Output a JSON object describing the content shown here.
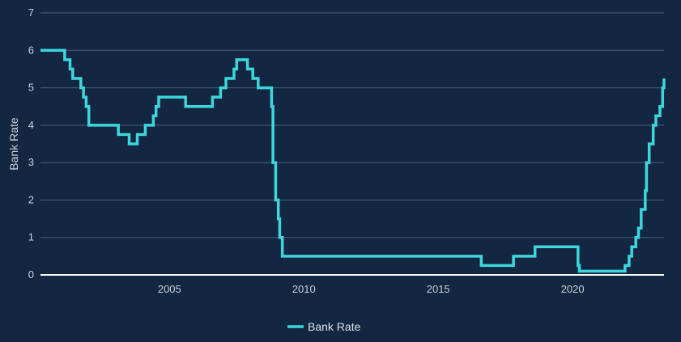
{
  "colors": {
    "background": "#132742",
    "grid": "#4b5f78",
    "axis": "#ffffff",
    "series": "#3dd6dc",
    "text": "#c9d1dc"
  },
  "chart_data": {
    "type": "line",
    "title": "",
    "xlabel": "",
    "ylabel": "Bank Rate",
    "xlim": [
      2000.2,
      2023.4
    ],
    "ylim": [
      0,
      7
    ],
    "x_ticks": [
      "2005",
      "2010",
      "2015",
      "2020"
    ],
    "y_ticks": [
      "0",
      "1",
      "2",
      "3",
      "4",
      "5",
      "6",
      "7"
    ],
    "grid": true,
    "legend_position": "bottom-center",
    "step": "after",
    "series": [
      {
        "name": "Bank Rate",
        "points": [
          [
            2000.2,
            6.0
          ],
          [
            2001.1,
            5.75
          ],
          [
            2001.3,
            5.5
          ],
          [
            2001.4,
            5.25
          ],
          [
            2001.7,
            5.0
          ],
          [
            2001.8,
            4.75
          ],
          [
            2001.9,
            4.5
          ],
          [
            2002.0,
            4.0
          ],
          [
            2003.1,
            3.75
          ],
          [
            2003.5,
            3.5
          ],
          [
            2003.8,
            3.75
          ],
          [
            2004.1,
            4.0
          ],
          [
            2004.4,
            4.25
          ],
          [
            2004.5,
            4.5
          ],
          [
            2004.6,
            4.75
          ],
          [
            2005.6,
            4.5
          ],
          [
            2006.6,
            4.75
          ],
          [
            2006.9,
            5.0
          ],
          [
            2007.1,
            5.25
          ],
          [
            2007.4,
            5.5
          ],
          [
            2007.5,
            5.75
          ],
          [
            2007.9,
            5.5
          ],
          [
            2008.1,
            5.25
          ],
          [
            2008.3,
            5.0
          ],
          [
            2008.8,
            4.5
          ],
          [
            2008.85,
            3.0
          ],
          [
            2008.95,
            2.0
          ],
          [
            2009.05,
            1.5
          ],
          [
            2009.1,
            1.0
          ],
          [
            2009.2,
            0.5
          ],
          [
            2016.6,
            0.25
          ],
          [
            2017.8,
            0.5
          ],
          [
            2018.6,
            0.75
          ],
          [
            2020.2,
            0.25
          ],
          [
            2020.25,
            0.1
          ],
          [
            2021.95,
            0.25
          ],
          [
            2022.1,
            0.5
          ],
          [
            2022.2,
            0.75
          ],
          [
            2022.35,
            1.0
          ],
          [
            2022.45,
            1.25
          ],
          [
            2022.55,
            1.75
          ],
          [
            2022.7,
            2.25
          ],
          [
            2022.75,
            3.0
          ],
          [
            2022.85,
            3.5
          ],
          [
            2023.0,
            4.0
          ],
          [
            2023.1,
            4.25
          ],
          [
            2023.25,
            4.5
          ],
          [
            2023.35,
            5.0
          ],
          [
            2023.45,
            5.25
          ],
          [
            2023.6,
            5.25
          ]
        ]
      }
    ]
  }
}
